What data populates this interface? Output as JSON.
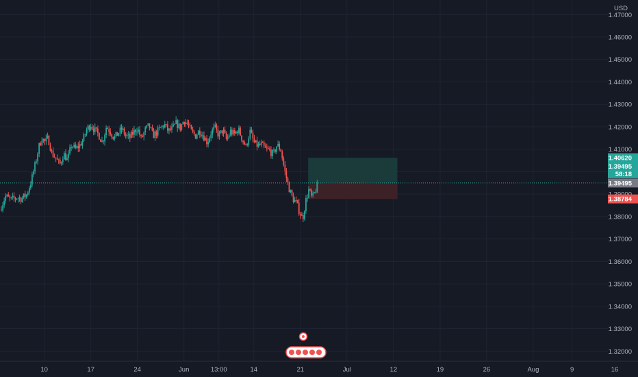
{
  "currency_label": "USD",
  "countdown": "58:18",
  "colors": {
    "background": "#161a25",
    "up": "#26a69a",
    "down": "#ef5350",
    "target_zone": "#1b3a3a",
    "stop_zone": "#3c2227",
    "current_price_badge": "#787b86",
    "axis_text": "#b2b5be"
  },
  "chart_data": {
    "type": "candlestick",
    "symbol": "",
    "price_axis": {
      "ylim": [
        1.3155,
        1.4765
      ],
      "ticks": [
        "1.32000",
        "1.33000",
        "1.34000",
        "1.35000",
        "1.36000",
        "1.37000",
        "1.38000",
        "1.39000",
        "1.40000",
        "1.41000",
        "1.42000",
        "1.43000",
        "1.44000",
        "1.45000",
        "1.46000",
        "1.47000"
      ],
      "tick_values": [
        1.32,
        1.33,
        1.34,
        1.35,
        1.36,
        1.37,
        1.38,
        1.39,
        1.4,
        1.41,
        1.42,
        1.43,
        1.44,
        1.45,
        1.46,
        1.47
      ]
    },
    "time_axis": {
      "labels": [
        {
          "text": "10",
          "t": 35
        },
        {
          "text": "17",
          "t": 95
        },
        {
          "text": "24",
          "t": 155
        },
        {
          "text": "Jun",
          "t": 215
        },
        {
          "text": "13:00",
          "t": 260
        },
        {
          "text": "14",
          "t": 305
        },
        {
          "text": "21",
          "t": 365
        },
        {
          "text": "Jul",
          "t": 425
        },
        {
          "text": "12",
          "t": 485
        },
        {
          "text": "19",
          "t": 545
        },
        {
          "text": "26",
          "t": 605
        },
        {
          "text": "Aug",
          "t": 665
        },
        {
          "text": "9",
          "t": 715
        },
        {
          "text": "16",
          "t": 770
        }
      ],
      "t_range": [
        -22,
        800
      ]
    },
    "price_line": {
      "value": 1.39495,
      "label": "1.39495"
    },
    "position": {
      "entry": 1.39495,
      "target": 1.4062,
      "stop": 1.38784,
      "target_label": "1.40620",
      "entry_label": "1.39495",
      "stop_label": "1.38784",
      "t_start": 375,
      "t_end": 490
    },
    "close_path": [
      [
        -22,
        1.383
      ],
      [
        -15,
        1.389
      ],
      [
        -8,
        1.3875
      ],
      [
        0,
        1.3885
      ],
      [
        5,
        1.388
      ],
      [
        12,
        1.3895
      ],
      [
        18,
        1.3955
      ],
      [
        24,
        1.404
      ],
      [
        28,
        1.411
      ],
      [
        32,
        1.415
      ],
      [
        36,
        1.413
      ],
      [
        40,
        1.415
      ],
      [
        45,
        1.408
      ],
      [
        50,
        1.406
      ],
      [
        55,
        1.403
      ],
      [
        60,
        1.408
      ],
      [
        65,
        1.405
      ],
      [
        70,
        1.412
      ],
      [
        75,
        1.41
      ],
      [
        80,
        1.4115
      ],
      [
        85,
        1.414
      ],
      [
        90,
        1.419
      ],
      [
        95,
        1.421
      ],
      [
        100,
        1.4185
      ],
      [
        105,
        1.4165
      ],
      [
        110,
        1.413
      ],
      [
        115,
        1.42
      ],
      [
        120,
        1.418
      ],
      [
        125,
        1.415
      ],
      [
        130,
        1.417
      ],
      [
        135,
        1.419
      ],
      [
        140,
        1.416
      ],
      [
        145,
        1.415
      ],
      [
        150,
        1.4175
      ],
      [
        155,
        1.4195
      ],
      [
        160,
        1.4145
      ],
      [
        165,
        1.4185
      ],
      [
        170,
        1.4205
      ],
      [
        175,
        1.416
      ],
      [
        180,
        1.4175
      ],
      [
        185,
        1.4195
      ],
      [
        190,
        1.421
      ],
      [
        195,
        1.418
      ],
      [
        200,
        1.419
      ],
      [
        205,
        1.4215
      ],
      [
        210,
        1.4195
      ],
      [
        215,
        1.423
      ],
      [
        220,
        1.421
      ],
      [
        225,
        1.4175
      ],
      [
        230,
        1.416
      ],
      [
        235,
        1.4185
      ],
      [
        240,
        1.416
      ],
      [
        245,
        1.413
      ],
      [
        250,
        1.4175
      ],
      [
        255,
        1.4195
      ],
      [
        260,
        1.416
      ],
      [
        265,
        1.4185
      ],
      [
        270,
        1.414
      ],
      [
        275,
        1.418
      ],
      [
        280,
        1.4165
      ],
      [
        285,
        1.419
      ],
      [
        290,
        1.4145
      ],
      [
        295,
        1.411
      ],
      [
        300,
        1.418
      ],
      [
        305,
        1.413
      ],
      [
        310,
        1.4115
      ],
      [
        315,
        1.412
      ],
      [
        320,
        1.41
      ],
      [
        325,
        1.4095
      ],
      [
        330,
        1.4075
      ],
      [
        335,
        1.412
      ],
      [
        340,
        1.4095
      ],
      [
        345,
        1.4
      ],
      [
        350,
        1.393
      ],
      [
        355,
        1.388
      ],
      [
        360,
        1.386
      ],
      [
        364,
        1.382
      ],
      [
        368,
        1.379
      ],
      [
        372,
        1.387
      ],
      [
        376,
        1.392
      ],
      [
        380,
        1.388
      ],
      [
        384,
        1.391
      ],
      [
        388,
        1.395
      ]
    ]
  }
}
